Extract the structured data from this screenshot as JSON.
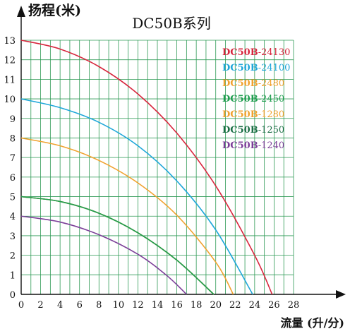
{
  "chart_data": {
    "type": "line",
    "title": "DC50B系列",
    "xlabel": "流量 (升/分)",
    "ylabel": "扬程(米)",
    "xlim": [
      0,
      28
    ],
    "ylim": [
      0,
      13
    ],
    "xticks": [
      "0",
      "2",
      "4",
      "6",
      "8",
      "10",
      "12",
      "14",
      "16",
      "18",
      "20",
      "22",
      "24",
      "26",
      "28"
    ],
    "yticks": [
      "0",
      "1",
      "2",
      "3",
      "4",
      "5",
      "6",
      "7",
      "8",
      "9",
      "10",
      "11",
      "12",
      "13"
    ],
    "grid": true,
    "legend_position": "top-right",
    "series": [
      {
        "name_prefix": "DC50B",
        "name_suffix": "-24130",
        "color": "#d7263d",
        "x": [
          0,
          4,
          8,
          12,
          16,
          20,
          24,
          25.8
        ],
        "y": [
          13,
          12.55,
          11.65,
          10.25,
          8.25,
          5.55,
          2.0,
          0
        ]
      },
      {
        "name_prefix": "DC50B",
        "name_suffix": "-24100",
        "color": "#1fa7d9",
        "x": [
          0,
          4,
          8,
          12,
          16,
          20,
          23.8
        ],
        "y": [
          10,
          9.55,
          8.8,
          7.6,
          5.8,
          3.3,
          0
        ]
      },
      {
        "name_prefix": "DC50B",
        "name_suffix": "-2480",
        "color": "#f0a22e",
        "x": [
          0,
          4,
          8,
          12,
          16,
          20,
          21.8
        ],
        "y": [
          8,
          7.6,
          6.85,
          5.7,
          4.05,
          1.65,
          0
        ]
      },
      {
        "name_prefix": "DC50B",
        "name_suffix": "-2450",
        "color": "#1f9e4f",
        "x": [
          0,
          4,
          8,
          12,
          16,
          19.8
        ],
        "y": [
          5,
          4.75,
          4.15,
          3.15,
          1.75,
          0
        ]
      },
      {
        "name_prefix": "DC50B",
        "name_suffix": "-1280",
        "color": "#f0a22e",
        "x": [
          0,
          4,
          8,
          12,
          16,
          19.8
        ],
        "y": [
          5,
          4.75,
          4.15,
          3.15,
          1.75,
          0
        ]
      },
      {
        "name_prefix": "DC50B",
        "name_suffix": "-1250",
        "color": "#1b6e45",
        "x": [
          0,
          4,
          8,
          12,
          16,
          19.8
        ],
        "y": [
          5,
          4.75,
          4.15,
          3.15,
          1.75,
          0
        ]
      },
      {
        "name_prefix": "DC50B",
        "name_suffix": "-1240",
        "color": "#7b3f98",
        "x": [
          0,
          4,
          8,
          12,
          15,
          17
        ],
        "y": [
          4,
          3.7,
          3.05,
          2.05,
          0.95,
          0
        ]
      }
    ]
  }
}
